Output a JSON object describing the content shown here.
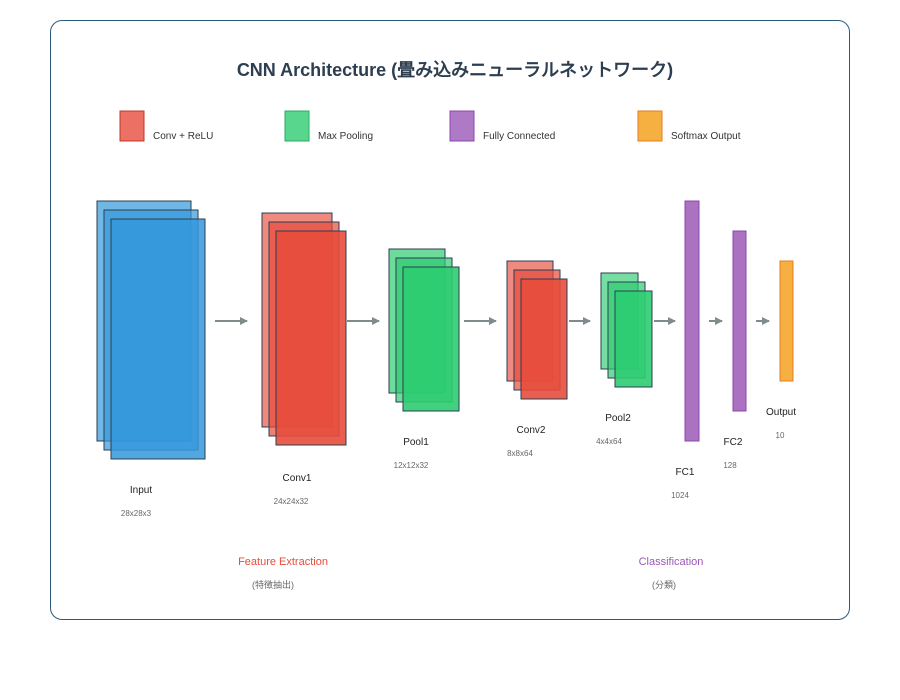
{
  "title": "CNN Architecture (畳み込みニューラルネットワーク)",
  "legend": [
    {
      "label": "Conv + ReLU",
      "color": "#e74c3c"
    },
    {
      "label": "Max Pooling",
      "color": "#2ecc71"
    },
    {
      "label": "Fully Connected",
      "color": "#9b59b6"
    },
    {
      "label": "Softmax Output",
      "color": "#f39c12"
    }
  ],
  "layers": [
    {
      "name": "Input",
      "dims": "28x28x3",
      "type": "input",
      "color": "#3498db"
    },
    {
      "name": "Conv1",
      "dims": "24x24x32",
      "type": "conv",
      "color": "#e74c3c"
    },
    {
      "name": "Pool1",
      "dims": "12x12x32",
      "type": "pool",
      "color": "#2ecc71"
    },
    {
      "name": "Conv2",
      "dims": "8x8x64",
      "type": "conv",
      "color": "#e74c3c"
    },
    {
      "name": "Pool2",
      "dims": "4x4x64",
      "type": "pool",
      "color": "#2ecc71"
    },
    {
      "name": "FC1",
      "dims": "1024",
      "type": "fc",
      "color": "#9b59b6"
    },
    {
      "name": "FC2",
      "dims": "128",
      "type": "fc",
      "color": "#9b59b6"
    },
    {
      "name": "Output",
      "dims": "10",
      "type": "output",
      "color": "#f39c12"
    }
  ],
  "sections": {
    "feature": {
      "label": "Feature Extraction",
      "sub": "(特徴抽出)",
      "color": "#e74c3c"
    },
    "classification": {
      "label": "Classification",
      "sub": "(分類)",
      "color": "#9b59b6"
    }
  },
  "colors": {
    "arrow": "#7f8c8d",
    "border": "#2c5a7a",
    "stroke": "#2c3e50"
  }
}
